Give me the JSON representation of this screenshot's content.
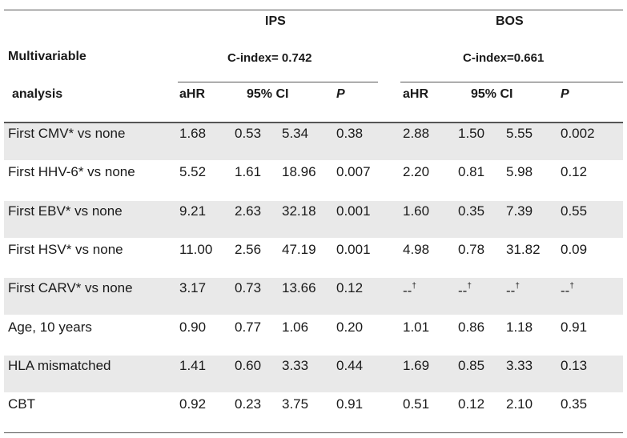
{
  "header": {
    "group_ips": "IPS",
    "group_bos": "BOS",
    "row_label_line1": "Multivariable",
    "row_label_line2": "analysis",
    "cindex_ips": "C-index= 0.742",
    "cindex_bos": "C-index=0.661",
    "col_ahr": "aHR",
    "col_ci": "95% CI",
    "col_p": "P"
  },
  "rows": [
    {
      "label": "First CMV* vs none",
      "ips": [
        "1.68",
        "0.53",
        "5.34",
        "0.38"
      ],
      "bos": [
        "2.88",
        "1.50",
        "5.55",
        "0.002"
      ],
      "shaded": true
    },
    {
      "label": "First HHV-6* vs none",
      "ips": [
        "5.52",
        "1.61",
        "18.96",
        "0.007"
      ],
      "bos": [
        "2.20",
        "0.81",
        "5.98",
        "0.12"
      ],
      "shaded": false
    },
    {
      "label": "First EBV* vs none",
      "ips": [
        "9.21",
        "2.63",
        "32.18",
        "0.001"
      ],
      "bos": [
        "1.60",
        "0.35",
        "7.39",
        "0.55"
      ],
      "shaded": true
    },
    {
      "label": "First HSV* vs none",
      "ips": [
        "11.00",
        "2.56",
        "47.19",
        "0.001"
      ],
      "bos": [
        "4.98",
        "0.78",
        "31.82",
        "0.09"
      ],
      "shaded": false
    },
    {
      "label": "First CARV* vs none",
      "ips": [
        "3.17",
        "0.73",
        "13.66",
        "0.12"
      ],
      "bos": [
        "--†",
        "--†",
        "--†",
        "--†"
      ],
      "shaded": true
    },
    {
      "label": "Age, 10 years",
      "ips": [
        "0.90",
        "0.77",
        "1.06",
        "0.20"
      ],
      "bos": [
        "1.01",
        "0.86",
        "1.18",
        "0.91"
      ],
      "shaded": false
    },
    {
      "label": "HLA mismatched",
      "ips": [
        "1.41",
        "0.60",
        "3.33",
        "0.44"
      ],
      "bos": [
        "1.69",
        "0.85",
        "3.33",
        "0.13"
      ],
      "shaded": true
    },
    {
      "label": "CBT",
      "ips": [
        "0.92",
        "0.23",
        "3.75",
        "0.91"
      ],
      "bos": [
        "0.51",
        "0.12",
        "2.10",
        "0.35"
      ],
      "shaded": false
    }
  ]
}
